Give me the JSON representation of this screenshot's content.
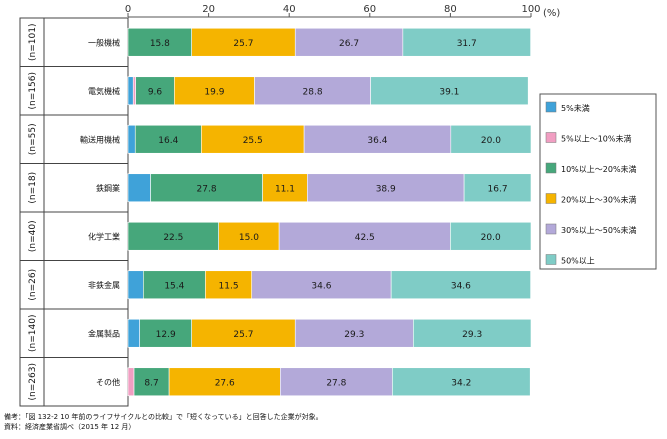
{
  "chart_data": {
    "type": "bar",
    "orientation": "horizontal",
    "stacked": true,
    "xlim": [
      0,
      100
    ],
    "x_ticks": [
      "0",
      "20",
      "40",
      "60",
      "80",
      "100"
    ],
    "unit_label": "(%)",
    "grid": false,
    "legend_position": "right",
    "categories": [
      "一般機械",
      "電気機械",
      "輸送用機械",
      "鉄鋼業",
      "化学工業",
      "非鉄金属",
      "金属製品",
      "その他"
    ],
    "n_labels": [
      "(n=101)",
      "(n=156)",
      "(n=55)",
      "(n=18)",
      "(n=40)",
      "(n=26)",
      "(n=140)",
      "(n=263)"
    ],
    "series": [
      {
        "name": "5%未満",
        "color": "#3fa2d9",
        "values": [
          0.0,
          1.3,
          1.8,
          5.6,
          0.0,
          3.8,
          2.9,
          0.0
        ]
      },
      {
        "name": "5%以上～10%未満",
        "color": "#f19ec2",
        "values": [
          0.0,
          0.6,
          0.0,
          0.0,
          0.0,
          0.0,
          0.0,
          1.5
        ]
      },
      {
        "name": "10%以上～20%未満",
        "color": "#46a77b",
        "values": [
          15.8,
          9.6,
          16.4,
          27.8,
          22.5,
          15.4,
          12.9,
          8.7
        ]
      },
      {
        "name": "20%以上～30%未満",
        "color": "#f5b400",
        "values": [
          25.7,
          19.9,
          25.5,
          11.1,
          15.0,
          11.5,
          25.7,
          27.6
        ]
      },
      {
        "name": "30%以上～50%未満",
        "color": "#b3a9d9",
        "values": [
          26.7,
          28.8,
          36.4,
          38.9,
          42.5,
          34.6,
          29.3,
          27.8
        ]
      },
      {
        "name": "50%以上",
        "color": "#7fccc6",
        "values": [
          31.7,
          39.1,
          20.0,
          16.7,
          20.0,
          34.6,
          29.3,
          34.2
        ]
      }
    ],
    "data_labels": [
      [
        "",
        "",
        "15.8",
        "25.7",
        "26.7",
        "31.7"
      ],
      [
        "",
        "",
        "9.6",
        "19.9",
        "28.8",
        "39.1"
      ],
      [
        "",
        "",
        "16.4",
        "25.5",
        "36.4",
        "20.0"
      ],
      [
        "",
        "",
        "27.8",
        "11.1",
        "38.9",
        "16.7"
      ],
      [
        "",
        "",
        "22.5",
        "15.0",
        "42.5",
        "20.0"
      ],
      [
        "",
        "",
        "15.4",
        "11.5",
        "34.6",
        "34.6"
      ],
      [
        "",
        "",
        "12.9",
        "25.7",
        "29.3",
        "29.3"
      ],
      [
        "",
        "",
        "8.7",
        "27.6",
        "27.8",
        "34.2"
      ]
    ]
  },
  "notes": {
    "line1": "備考：「図 132-2 10 年前のライフサイクルとの比較」で「短くなっている」と回答した企業が対象。",
    "line2": "資料：経済産業省調べ（2015 年 12 月）"
  }
}
